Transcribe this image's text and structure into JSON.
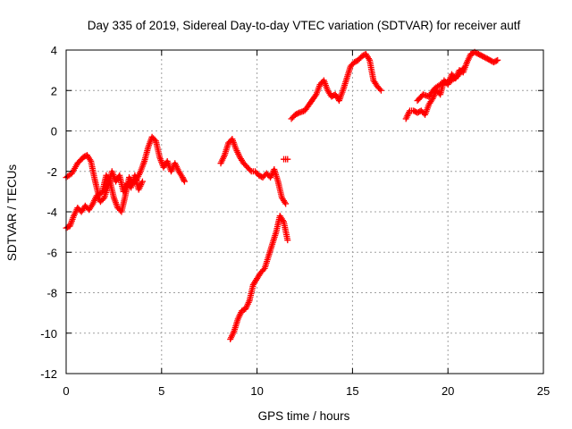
{
  "chart_data": {
    "type": "scatter",
    "title": "Day 335 of 2019, Sidereal Day-to-day VTEC variation (SDTVAR) for receiver autf",
    "xlabel": "GPS time / hours",
    "ylabel": "SDTVAR / TECUs",
    "xlim": [
      0,
      25
    ],
    "ylim": [
      -12,
      4
    ],
    "x_ticks": [
      0,
      5,
      10,
      15,
      20,
      25
    ],
    "y_ticks": [
      -12,
      -10,
      -8,
      -6,
      -4,
      -2,
      0,
      2,
      4
    ],
    "x_tick_labels": [
      "0",
      "5",
      "10",
      "15",
      "20",
      "25"
    ],
    "y_tick_labels": [
      "-12",
      "-10",
      "-8",
      "-6",
      "-4",
      "-2",
      "0",
      "2",
      "4"
    ],
    "grid": true,
    "marker": "plus",
    "color": "#ff0000",
    "series": [
      {
        "x": [
          0.0,
          0.3,
          0.6,
          0.9,
          1.1,
          1.3,
          1.5,
          1.7,
          1.9,
          2.1,
          2.3,
          2.5,
          2.7,
          2.9,
          3.1,
          3.3,
          3.5,
          3.7,
          3.9,
          4.1,
          4.3,
          4.5,
          4.7,
          4.9,
          5.1,
          5.3,
          5.5,
          5.7,
          5.9,
          6.1,
          6.2
        ],
        "y": [
          -2.3,
          -2.1,
          -1.6,
          -1.3,
          -1.2,
          -1.5,
          -2.4,
          -3.2,
          -3.0,
          -2.2,
          -2.5,
          -3.3,
          -3.8,
          -4.0,
          -3.2,
          -2.3,
          -2.6,
          -2.4,
          -2.0,
          -1.5,
          -0.8,
          -0.3,
          -0.5,
          -1.3,
          -1.8,
          -1.5,
          -2.0,
          -1.6,
          -2.0,
          -2.3,
          -2.5
        ]
      },
      {
        "x": [
          0.0,
          0.2,
          0.4,
          0.6,
          0.8,
          1.0,
          1.2,
          1.4,
          1.6,
          1.8,
          2.0,
          2.2,
          2.4,
          2.6,
          2.8,
          3.0,
          3.2,
          3.4,
          3.6,
          3.8,
          4.0
        ],
        "y": [
          -4.8,
          -4.7,
          -4.2,
          -3.8,
          -4.0,
          -3.7,
          -3.9,
          -3.6,
          -3.2,
          -3.5,
          -3.3,
          -2.7,
          -2.0,
          -2.5,
          -2.2,
          -3.0,
          -2.6,
          -2.8,
          -2.2,
          -2.9,
          -2.5
        ]
      },
      {
        "x": [
          8.1,
          8.3,
          8.5,
          8.7,
          8.9,
          9.1,
          9.3,
          9.5,
          9.7,
          9.9,
          10.1,
          10.3,
          10.5,
          10.7,
          10.9,
          11.1,
          11.3,
          11.5
        ],
        "y": [
          -1.6,
          -1.2,
          -0.6,
          -0.4,
          -0.9,
          -1.3,
          -1.6,
          -1.8,
          -2.0,
          -2.0,
          -2.2,
          -2.3,
          -2.1,
          -2.3,
          -1.9,
          -2.5,
          -3.3,
          -3.6
        ]
      },
      {
        "x": [
          11.4,
          11.6
        ],
        "y": [
          -1.4,
          -1.4
        ]
      },
      {
        "x": [
          8.6,
          8.8,
          9.0,
          9.2,
          9.4,
          9.6,
          9.8,
          10.0,
          10.2,
          10.4,
          10.6,
          10.8,
          11.0,
          11.2,
          11.4,
          11.6
        ],
        "y": [
          -10.3,
          -9.9,
          -9.3,
          -8.9,
          -8.8,
          -8.4,
          -7.6,
          -7.3,
          -7.0,
          -6.8,
          -6.2,
          -5.6,
          -5.0,
          -4.2,
          -4.5,
          -5.4
        ]
      },
      {
        "x": [
          11.8,
          12.0,
          12.2,
          12.5,
          12.8,
          13.1,
          13.3,
          13.5,
          13.7,
          13.9,
          14.1,
          14.3,
          14.5,
          14.7,
          14.9,
          15.1,
          15.3,
          15.5,
          15.7,
          15.9,
          16.1,
          16.3,
          16.5
        ],
        "y": [
          0.6,
          0.8,
          0.9,
          1.0,
          1.4,
          1.8,
          2.3,
          2.5,
          2.0,
          1.7,
          1.8,
          1.5,
          2.0,
          2.6,
          3.2,
          3.4,
          3.5,
          3.7,
          3.8,
          3.5,
          2.5,
          2.2,
          2.0
        ]
      },
      {
        "x": [
          17.8,
          18.0,
          18.2,
          18.4,
          18.6,
          18.8,
          19.0,
          19.2,
          19.4,
          19.6,
          19.8,
          20.0,
          20.2,
          20.4,
          20.6,
          20.8,
          21.0,
          21.2,
          21.4,
          21.6,
          21.8,
          22.0,
          22.2,
          22.4,
          22.6
        ],
        "y": [
          0.6,
          1.0,
          1.0,
          0.9,
          1.0,
          0.8,
          1.3,
          1.6,
          2.0,
          1.8,
          2.5,
          2.3,
          2.8,
          2.6,
          3.0,
          2.9,
          3.4,
          3.8,
          3.9,
          3.8,
          3.7,
          3.6,
          3.5,
          3.4,
          3.5
        ]
      },
      {
        "x": [
          18.4,
          18.7,
          19.0,
          19.3,
          19.6,
          19.9,
          20.2,
          20.5,
          20.8
        ],
        "y": [
          1.5,
          1.8,
          1.7,
          2.1,
          2.3,
          2.4,
          2.5,
          2.7,
          3.1
        ]
      }
    ]
  }
}
